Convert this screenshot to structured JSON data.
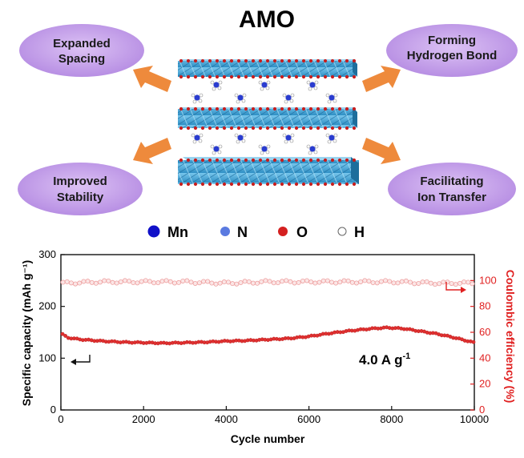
{
  "title": "AMO",
  "features": [
    {
      "lines": [
        "Expanded",
        "Spacing"
      ]
    },
    {
      "lines": [
        "Forming",
        "Hydrogen Bond"
      ]
    },
    {
      "lines": [
        "Improved",
        "Stability"
      ]
    },
    {
      "lines": [
        "Facilitating",
        "Ion Transfer"
      ]
    }
  ],
  "legend": [
    {
      "label": "Mn",
      "color": "#1010c8"
    },
    {
      "label": "N",
      "color": "#5a7ae0"
    },
    {
      "label": "O",
      "color": "#d42020"
    },
    {
      "label": "H",
      "color": "#ffffff"
    }
  ],
  "colors": {
    "ellipse": "#c8a6ec",
    "arrow": "#ee8a3c",
    "slab": "#3aa6d8",
    "capacity": "#e23a3a",
    "efficiency": "#f0a6a6",
    "right_axis": "#e02020"
  },
  "chart_data": {
    "type": "scatter",
    "annotation": "4.0 A g",
    "annotation_sup": "-1",
    "xlabel": "Cycle number",
    "ylabel_left": "Specific capacity (mAh g⁻¹)",
    "ylabel_right": "Coulombic efficiency (%)",
    "xlim": [
      0,
      10000
    ],
    "ylim_left": [
      0,
      300
    ],
    "ylim_right": [
      0,
      120
    ],
    "x_ticks": [
      "0",
      "2000",
      "4000",
      "6000",
      "8000",
      "10000"
    ],
    "y_left_ticks": [
      "0",
      "100",
      "200",
      "300"
    ],
    "y_right_ticks": [
      "0",
      "20",
      "40",
      "60",
      "80",
      "100"
    ],
    "series": [
      {
        "axis": "left",
        "x": [
          50,
          150,
          300,
          500,
          1000,
          1500,
          2000,
          2500,
          3000,
          3500,
          4000,
          4500,
          5000,
          5500,
          6000,
          6500,
          7000,
          7500,
          7900,
          8300,
          8700,
          9100,
          9500,
          9800,
          10000
        ],
        "values": [
          146,
          140,
          138,
          136,
          133,
          131,
          130,
          129,
          130,
          131,
          133,
          134,
          136,
          138,
          142,
          148,
          153,
          157,
          159,
          157,
          152,
          147,
          140,
          134,
          130
        ]
      },
      {
        "axis": "right",
        "x": [
          0,
          1000,
          2000,
          3000,
          4000,
          5000,
          6000,
          7000,
          8000,
          9000,
          10000
        ],
        "values": [
          98,
          99,
          99,
          99,
          98,
          99,
          99,
          99,
          99,
          98,
          98
        ]
      }
    ]
  }
}
